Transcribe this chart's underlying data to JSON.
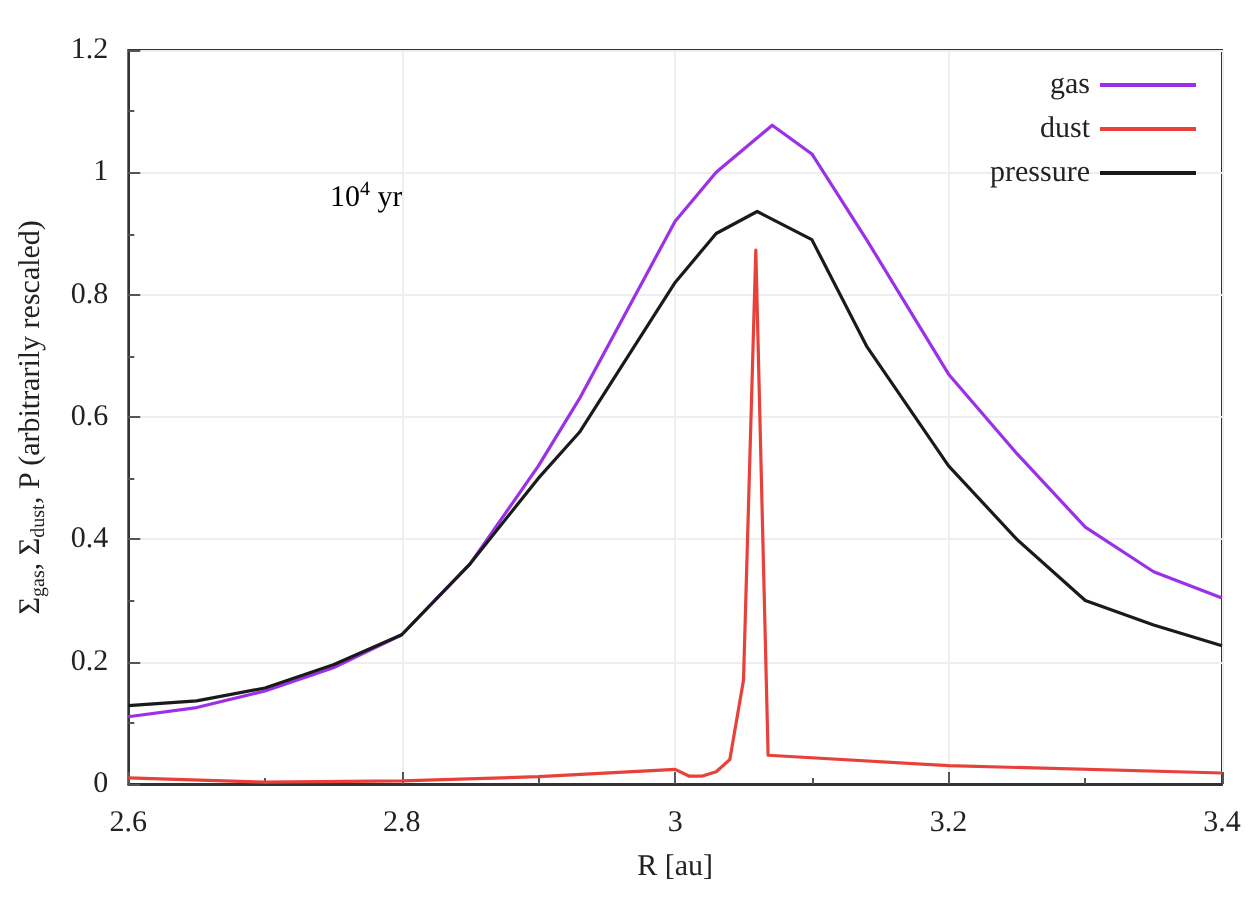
{
  "chart_data": {
    "type": "line",
    "xlabel": "R [au]",
    "ylabel": "Σ$_{gas}$, Σ$_{dust}$, P (arbitrarily rescaled)",
    "annotations": [
      "10$^{4}$ yr"
    ],
    "xlim": [
      2.6,
      3.4
    ],
    "ylim": [
      0,
      1.2
    ],
    "xticks": [
      2.6,
      2.8,
      3,
      3.2,
      3.4
    ],
    "yticks": [
      0,
      0.2,
      0.4,
      0.6,
      0.8,
      1,
      1.2
    ],
    "grid": true,
    "legend": "top right",
    "series": [
      {
        "name": "gas",
        "color": "#9b30e8",
        "x": [
          2.6,
          2.65,
          2.7,
          2.75,
          2.8,
          2.85,
          2.9,
          2.93,
          3.0,
          3.03,
          3.071,
          3.1,
          3.14,
          3.2,
          3.25,
          3.3,
          3.35,
          3.4
        ],
        "values": [
          0.11,
          0.125,
          0.152,
          0.19,
          0.244,
          0.36,
          0.52,
          0.63,
          0.92,
          1.0,
          1.077,
          1.03,
          0.89,
          0.67,
          0.54,
          0.42,
          0.347,
          0.304
        ]
      },
      {
        "name": "dust",
        "color": "#e8413a",
        "x": [
          2.6,
          2.7,
          2.8,
          2.9,
          3.0,
          3.01,
          3.02,
          3.03,
          3.04,
          3.05,
          3.059,
          3.068,
          3.2,
          3.4
        ],
        "values": [
          0.01,
          0.003,
          0.005,
          0.012,
          0.024,
          0.013,
          0.013,
          0.02,
          0.04,
          0.17,
          0.873,
          0.047,
          0.03,
          0.018
        ]
      },
      {
        "name": "pressure",
        "color": "#1a1a1a",
        "x": [
          2.6,
          2.65,
          2.7,
          2.75,
          2.8,
          2.85,
          2.9,
          2.93,
          3.0,
          3.03,
          3.06,
          3.1,
          3.14,
          3.2,
          3.25,
          3.3,
          3.35,
          3.4
        ],
        "values": [
          0.128,
          0.136,
          0.157,
          0.195,
          0.244,
          0.36,
          0.5,
          0.575,
          0.82,
          0.9,
          0.936,
          0.89,
          0.716,
          0.52,
          0.4,
          0.3,
          0.26,
          0.226
        ]
      }
    ]
  }
}
